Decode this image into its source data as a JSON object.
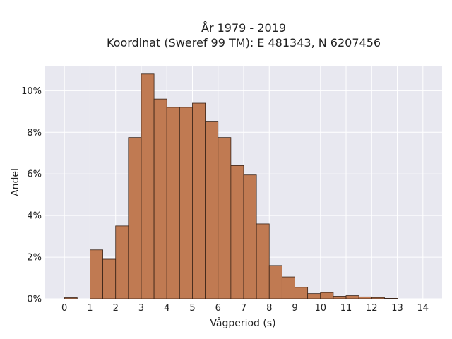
{
  "chart_data": {
    "type": "bar",
    "title": "År 1979 - 2019",
    "subtitle": "Koordinat (Sweref 99 TM): E 481343, N 6207456",
    "xlabel": "Vågperiod (s)",
    "ylabel": "Andel",
    "bin_width": 0.5,
    "bin_starts": [
      0,
      0.5,
      1,
      1.5,
      2,
      2.5,
      3,
      3.5,
      4,
      4.5,
      5,
      5.5,
      6,
      6.5,
      7,
      7.5,
      8,
      8.5,
      9,
      9.5,
      10,
      10.5,
      11,
      11.5,
      12,
      12.5,
      13
    ],
    "values": [
      0.05,
      0.0,
      2.35,
      1.9,
      3.5,
      7.75,
      10.8,
      9.6,
      9.2,
      9.2,
      9.4,
      8.5,
      7.75,
      6.4,
      5.95,
      3.6,
      1.6,
      1.05,
      0.55,
      0.25,
      0.3,
      0.12,
      0.15,
      0.09,
      0.06,
      0.02,
      0.0
    ],
    "xlim": [
      -0.75,
      14.75
    ],
    "ylim": [
      0,
      11.2
    ],
    "x_ticks": [
      0,
      1,
      2,
      3,
      4,
      5,
      6,
      7,
      8,
      9,
      10,
      11,
      12,
      13,
      14
    ],
    "y_ticks": [
      0,
      2,
      4,
      6,
      8,
      10
    ],
    "y_tick_labels": [
      "0%",
      "2%",
      "4%",
      "6%",
      "8%",
      "10%"
    ],
    "grid": true,
    "colors": {
      "bar_fill": "#c07a52",
      "bar_stroke": "#3a2418",
      "plot_bg": "#e8e8f0",
      "grid": "#ffffff"
    }
  }
}
